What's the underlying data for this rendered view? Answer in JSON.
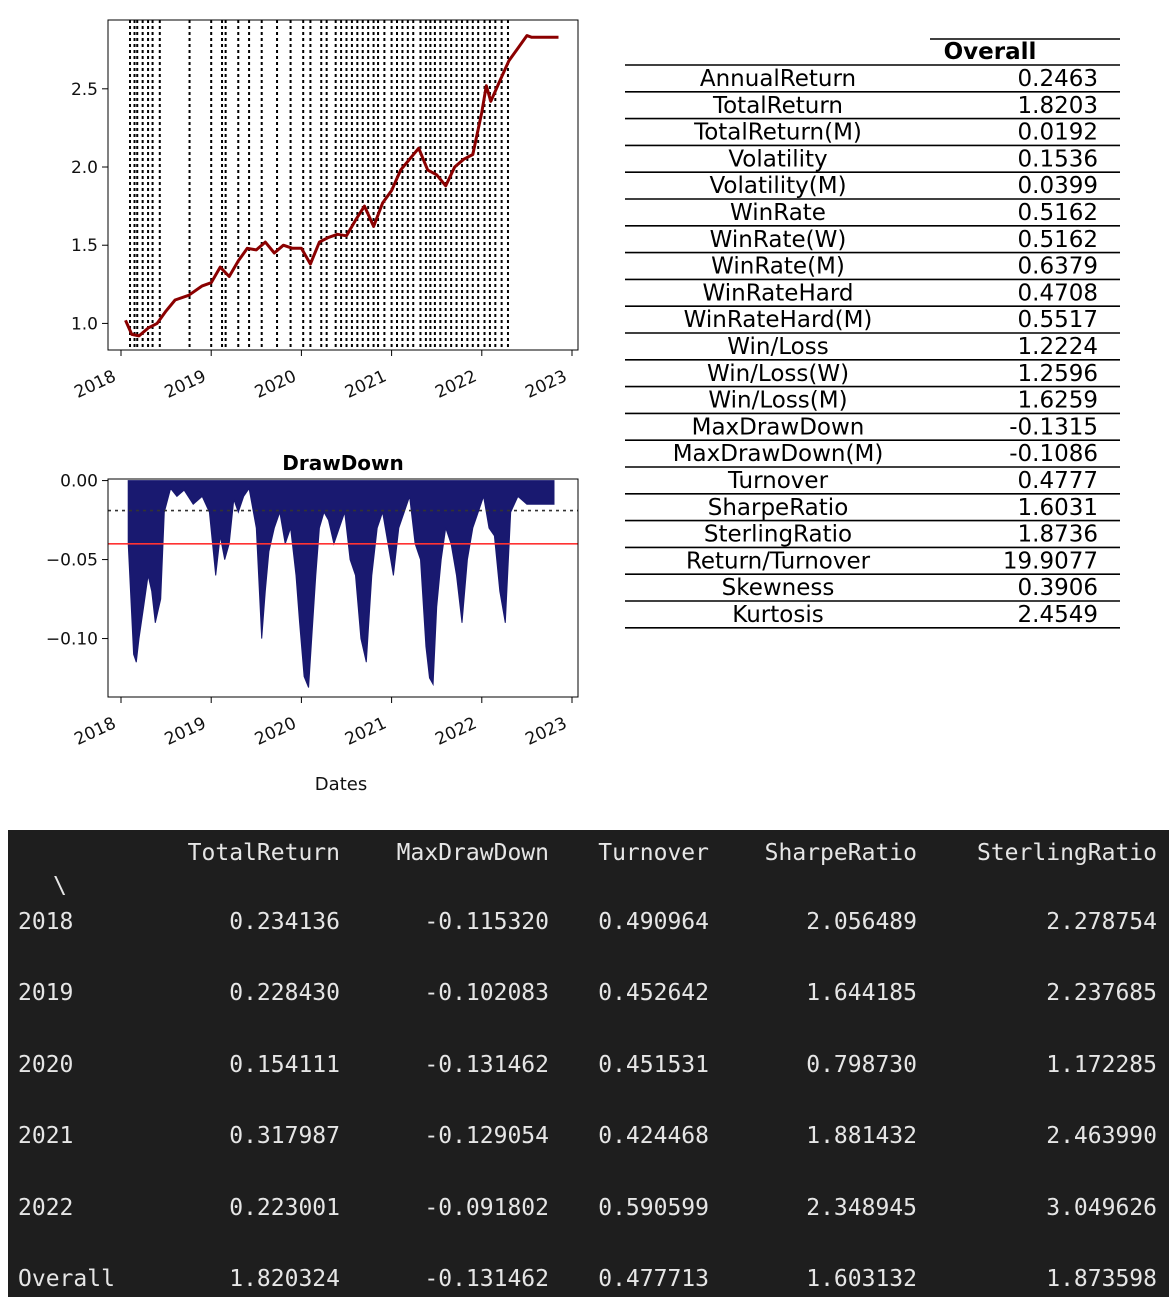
{
  "colors": {
    "equity_line": "#8b0000",
    "drawdown_fill": "#191970",
    "threshold_line": "#ff3333",
    "console_bg": "#1e1e1e",
    "console_text": "#e6e6e6"
  },
  "chart_data": [
    {
      "type": "line",
      "title": "",
      "xlabel": "",
      "ylabel": "",
      "x_tick_labels": [
        "2018",
        "2019",
        "2020",
        "2021",
        "2022",
        "2023"
      ],
      "y_tick_labels": [
        "1.0",
        "1.5",
        "2.0",
        "2.5"
      ],
      "ylim": [
        0.83,
        2.94
      ],
      "grid": false,
      "legend": "none",
      "series": [
        {
          "x": [
            2018.05,
            2018.12,
            2018.2,
            2018.3,
            2018.4,
            2018.5,
            2018.6,
            2018.75,
            2018.9,
            2019.0,
            2019.1,
            2019.2,
            2019.3,
            2019.4,
            2019.5,
            2019.6,
            2019.7,
            2019.8,
            2019.9,
            2020.0,
            2020.1,
            2020.2,
            2020.3,
            2020.4,
            2020.5,
            2020.6,
            2020.7,
            2020.8,
            2020.9,
            2021.0,
            2021.1,
            2021.2,
            2021.3,
            2021.4,
            2021.5,
            2021.6,
            2021.7,
            2021.8,
            2021.9,
            2022.0,
            2022.05,
            2022.1,
            2022.2,
            2022.3,
            2022.4,
            2022.5,
            2022.55,
            2022.7,
            2022.85
          ],
          "y": [
            1.02,
            0.93,
            0.92,
            0.97,
            1.0,
            1.08,
            1.15,
            1.18,
            1.24,
            1.26,
            1.36,
            1.3,
            1.4,
            1.48,
            1.47,
            1.52,
            1.45,
            1.5,
            1.48,
            1.48,
            1.38,
            1.52,
            1.55,
            1.57,
            1.56,
            1.66,
            1.75,
            1.62,
            1.77,
            1.85,
            1.98,
            2.05,
            2.12,
            1.98,
            1.95,
            1.88,
            2.0,
            2.05,
            2.08,
            2.35,
            2.52,
            2.42,
            2.55,
            2.68,
            2.76,
            2.84,
            2.83,
            2.83,
            2.83
          ]
        }
      ],
      "signal_lines_x": [
        2018.1,
        2018.15,
        2018.18,
        2018.24,
        2018.3,
        2018.35,
        2018.43,
        2018.76,
        2019.0,
        2019.12,
        2019.16,
        2019.3,
        2019.42,
        2019.56,
        2019.73,
        2019.88,
        2020.02,
        2020.1,
        2020.22,
        2020.28,
        2020.38,
        2020.44,
        2020.5,
        2020.56,
        2020.62,
        2020.68,
        2020.74,
        2020.8,
        2020.85,
        2020.92,
        2021.0,
        2021.06,
        2021.12,
        2021.18,
        2021.24,
        2021.32,
        2021.38,
        2021.43,
        2021.48,
        2021.54,
        2021.6,
        2021.66,
        2021.72,
        2021.78,
        2021.84,
        2021.9,
        2021.96,
        2022.03,
        2022.09,
        2022.15,
        2022.22,
        2022.29
      ]
    },
    {
      "type": "area",
      "title": "DrawDown",
      "xlabel": "Dates",
      "ylabel": "",
      "x_tick_labels": [
        "2018",
        "2019",
        "2020",
        "2021",
        "2022",
        "2023"
      ],
      "y_tick_labels": [
        "0.00",
        "−0.05",
        "−0.10"
      ],
      "ylim": [
        -0.137,
        0.001
      ],
      "grid": false,
      "legend": "none",
      "reference_lines": {
        "dotted": -0.019,
        "solid": -0.04
      },
      "series": [
        {
          "x": [
            2018.08,
            2018.14,
            2018.17,
            2018.2,
            2018.25,
            2018.3,
            2018.34,
            2018.38,
            2018.44,
            2018.48,
            2018.55,
            2018.62,
            2018.7,
            2018.8,
            2018.9,
            2018.98,
            2019.05,
            2019.1,
            2019.15,
            2019.2,
            2019.25,
            2019.3,
            2019.36,
            2019.42,
            2019.5,
            2019.56,
            2019.6,
            2019.64,
            2019.7,
            2019.76,
            2019.82,
            2019.88,
            2019.94,
            2019.98,
            2020.03,
            2020.08,
            2020.12,
            2020.16,
            2020.2,
            2020.25,
            2020.3,
            2020.36,
            2020.42,
            2020.48,
            2020.54,
            2020.6,
            2020.66,
            2020.72,
            2020.78,
            2020.84,
            2020.9,
            2020.96,
            2021.02,
            2021.08,
            2021.14,
            2021.2,
            2021.26,
            2021.32,
            2021.38,
            2021.42,
            2021.46,
            2021.5,
            2021.55,
            2021.6,
            2021.66,
            2021.72,
            2021.78,
            2021.84,
            2021.9,
            2021.96,
            2022.02,
            2022.08,
            2022.14,
            2022.2,
            2022.26,
            2022.32,
            2022.4,
            2022.5,
            2022.6,
            2022.7,
            2022.8
          ],
          "y": [
            -0.04,
            -0.11,
            -0.115,
            -0.1,
            -0.08,
            -0.06,
            -0.07,
            -0.09,
            -0.075,
            -0.02,
            -0.005,
            -0.01,
            -0.006,
            -0.015,
            -0.01,
            -0.02,
            -0.06,
            -0.035,
            -0.05,
            -0.04,
            -0.012,
            -0.02,
            -0.01,
            -0.005,
            -0.03,
            -0.1,
            -0.07,
            -0.045,
            -0.03,
            -0.02,
            -0.04,
            -0.03,
            -0.06,
            -0.09,
            -0.124,
            -0.131,
            -0.095,
            -0.06,
            -0.03,
            -0.02,
            -0.025,
            -0.04,
            -0.03,
            -0.02,
            -0.05,
            -0.06,
            -0.1,
            -0.115,
            -0.06,
            -0.03,
            -0.02,
            -0.04,
            -0.06,
            -0.03,
            -0.02,
            -0.01,
            -0.04,
            -0.05,
            -0.105,
            -0.125,
            -0.129,
            -0.08,
            -0.05,
            -0.03,
            -0.04,
            -0.06,
            -0.09,
            -0.05,
            -0.03,
            -0.02,
            -0.01,
            -0.03,
            -0.035,
            -0.07,
            -0.09,
            -0.02,
            -0.01,
            -0.015,
            -0.015,
            -0.015,
            -0.015
          ]
        }
      ]
    }
  ],
  "metrics_table": {
    "header": "Overall",
    "rows": [
      {
        "name": "AnnualReturn",
        "value": "0.2463"
      },
      {
        "name": "TotalReturn",
        "value": "1.8203"
      },
      {
        "name": "TotalReturn(M)",
        "value": "0.0192"
      },
      {
        "name": "Volatility",
        "value": "0.1536"
      },
      {
        "name": "Volatility(M)",
        "value": "0.0399"
      },
      {
        "name": "WinRate",
        "value": "0.5162"
      },
      {
        "name": "WinRate(W)",
        "value": "0.5162"
      },
      {
        "name": "WinRate(M)",
        "value": "0.6379"
      },
      {
        "name": "WinRateHard",
        "value": "0.4708"
      },
      {
        "name": "WinRateHard(M)",
        "value": "0.5517"
      },
      {
        "name": "Win/Loss",
        "value": "1.2224"
      },
      {
        "name": "Win/Loss(W)",
        "value": "1.2596"
      },
      {
        "name": "Win/Loss(M)",
        "value": "1.6259"
      },
      {
        "name": "MaxDrawDown",
        "value": "-0.1315"
      },
      {
        "name": "MaxDrawDown(M)",
        "value": "-0.1086"
      },
      {
        "name": "Turnover",
        "value": "0.4777"
      },
      {
        "name": "SharpeRatio",
        "value": "1.6031"
      },
      {
        "name": "SterlingRatio",
        "value": "1.8736"
      },
      {
        "name": "Return/Turnover",
        "value": "19.9077"
      },
      {
        "name": "Skewness",
        "value": "0.3906"
      },
      {
        "name": "Kurtosis",
        "value": "2.4549"
      }
    ]
  },
  "console_table": {
    "columns": [
      "TotalReturn",
      "MaxDrawDown",
      "Turnover",
      "SharpeRatio",
      "SterlingRatio"
    ],
    "continuation": "\\",
    "rows": [
      {
        "label": "2018",
        "values": [
          "0.234136",
          "-0.115320",
          "0.490964",
          "2.056489",
          "2.278754"
        ]
      },
      {
        "label": "2019",
        "values": [
          "0.228430",
          "-0.102083",
          "0.452642",
          "1.644185",
          "2.237685"
        ]
      },
      {
        "label": "2020",
        "values": [
          "0.154111",
          "-0.131462",
          "0.451531",
          "0.798730",
          "1.172285"
        ]
      },
      {
        "label": "2021",
        "values": [
          "0.317987",
          "-0.129054",
          "0.424468",
          "1.881432",
          "2.463990"
        ]
      },
      {
        "label": "2022",
        "values": [
          "0.223001",
          "-0.091802",
          "0.590599",
          "2.348945",
          "3.049626"
        ]
      },
      {
        "label": "Overall",
        "values": [
          "1.820324",
          "-0.131462",
          "0.477713",
          "1.603132",
          "1.873598"
        ]
      }
    ]
  }
}
